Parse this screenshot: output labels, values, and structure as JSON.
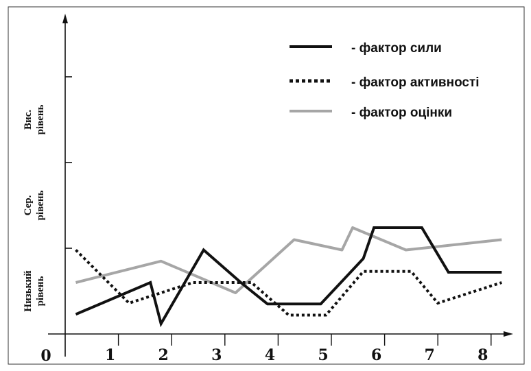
{
  "chart_data": {
    "type": "line",
    "origin_label": "0",
    "x": [
      1,
      2,
      3,
      4,
      5,
      6,
      7,
      8
    ],
    "x_tick_labels": [
      "1",
      "2",
      "3",
      "4",
      "5",
      "6",
      "7",
      "8"
    ],
    "xlim": [
      0,
      8.5
    ],
    "ylim": [
      0,
      3
    ],
    "y_bands": [
      {
        "lines": [
          "Низький",
          "рівень"
        ],
        "range": [
          0,
          1
        ]
      },
      {
        "lines": [
          "Сер.",
          "рівень"
        ],
        "range": [
          1,
          2
        ]
      },
      {
        "lines": [
          "Вис.",
          "рівень"
        ],
        "range": [
          2,
          3
        ]
      }
    ],
    "grid": false,
    "legend_position": "top-right",
    "series": [
      {
        "name": "- фактор сили",
        "style": "solid",
        "color": "#111111",
        "points": [
          [
            0.2,
            0.23
          ],
          [
            1.6,
            0.6
          ],
          [
            1.8,
            0.12
          ],
          [
            2.6,
            0.98
          ],
          [
            3.3,
            0.6
          ],
          [
            3.8,
            0.35
          ],
          [
            4.8,
            0.35
          ],
          [
            5.6,
            0.88
          ],
          [
            5.8,
            1.24
          ],
          [
            6.7,
            1.24
          ],
          [
            7.2,
            0.72
          ],
          [
            8.2,
            0.72
          ]
        ]
      },
      {
        "name": "- фактор активності",
        "style": "dotted",
        "color": "#111111",
        "points": [
          [
            0.2,
            0.98
          ],
          [
            1.2,
            0.36
          ],
          [
            2.4,
            0.6
          ],
          [
            3.5,
            0.6
          ],
          [
            4.2,
            0.22
          ],
          [
            4.9,
            0.22
          ],
          [
            5.6,
            0.73
          ],
          [
            6.5,
            0.73
          ],
          [
            7.0,
            0.36
          ],
          [
            8.2,
            0.6
          ]
        ]
      },
      {
        "name": "- фактор оцінки",
        "style": "solid",
        "color": "#a6a6a6",
        "points": [
          [
            0.2,
            0.6
          ],
          [
            1.8,
            0.85
          ],
          [
            3.2,
            0.48
          ],
          [
            4.3,
            1.1
          ],
          [
            5.2,
            0.98
          ],
          [
            5.4,
            1.24
          ],
          [
            6.4,
            0.98
          ],
          [
            8.2,
            1.1
          ]
        ]
      }
    ]
  }
}
